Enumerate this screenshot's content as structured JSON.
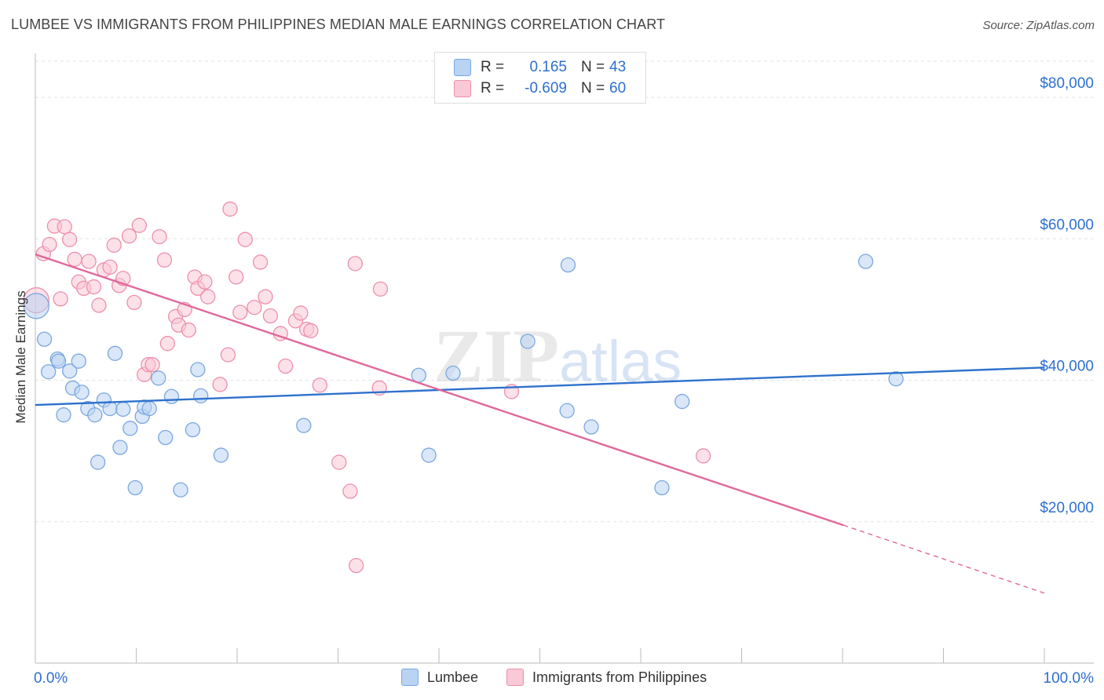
{
  "title": "LUMBEE VS IMMIGRANTS FROM PHILIPPINES MEDIAN MALE EARNINGS CORRELATION CHART",
  "source": "Source: ZipAtlas.com",
  "watermark": {
    "zip": "ZIP",
    "atlas": "atlas"
  },
  "legend": {
    "r_label": "R =",
    "n_label": "N =",
    "rows": [
      {
        "r": "0.165",
        "n": "43",
        "fill": "#b9d3f3",
        "stroke": "#7aa7e0"
      },
      {
        "r": "-0.609",
        "n": "60",
        "fill": "#f9c9d7",
        "stroke": "#ee8fab"
      }
    ]
  },
  "bottom_legend": [
    {
      "label": "Lumbee",
      "fill": "#b9d3f3",
      "stroke": "#7aa7e0"
    },
    {
      "label": "Immigrants from Philippines",
      "fill": "#f9c9d7",
      "stroke": "#ee8fab"
    }
  ],
  "colors": {
    "blue_line": "#2e72cc",
    "pink_line": "#e0689a",
    "tick_label": "#2e6fd0",
    "grid": "#e3e3e3"
  },
  "chart_data": {
    "type": "scatter",
    "ylabel": "Median Male Earnings",
    "xlim": [
      0,
      100
    ],
    "ylim": [
      0,
      86000
    ],
    "x_tick_labels": [
      "0.0%",
      "100.0%"
    ],
    "y_ticks": [
      {
        "value": 20000,
        "label": "$20,000"
      },
      {
        "value": 40000,
        "label": "$40,000"
      },
      {
        "value": 60000,
        "label": "$60,000"
      },
      {
        "value": 80000,
        "label": "$80,000"
      }
    ],
    "grid": true,
    "series": [
      {
        "name": "Lumbee",
        "color": "blue",
        "trend": {
          "x": [
            0,
            100
          ],
          "y": [
            36500,
            41800
          ]
        },
        "points": [
          [
            0.1,
            50500
          ],
          [
            0.9,
            45800
          ],
          [
            1.3,
            41200
          ],
          [
            2.2,
            43000
          ],
          [
            2.3,
            42700
          ],
          [
            2.8,
            35100
          ],
          [
            3.4,
            41300
          ],
          [
            3.7,
            38900
          ],
          [
            4.3,
            42700
          ],
          [
            4.6,
            38300
          ],
          [
            5.2,
            36000
          ],
          [
            5.9,
            35100
          ],
          [
            6.2,
            28400
          ],
          [
            6.8,
            37200
          ],
          [
            7.4,
            36000
          ],
          [
            7.9,
            43800
          ],
          [
            8.4,
            30500
          ],
          [
            8.7,
            35900
          ],
          [
            9.4,
            33200
          ],
          [
            9.9,
            24800
          ],
          [
            10.6,
            34900
          ],
          [
            10.8,
            36200
          ],
          [
            11.3,
            36000
          ],
          [
            12.2,
            40300
          ],
          [
            12.9,
            31900
          ],
          [
            13.5,
            37700
          ],
          [
            14.4,
            24500
          ],
          [
            15.6,
            33000
          ],
          [
            16.1,
            41500
          ],
          [
            16.4,
            37800
          ],
          [
            18.4,
            29400
          ],
          [
            26.6,
            33600
          ],
          [
            38.0,
            40700
          ],
          [
            39.0,
            29400
          ],
          [
            41.4,
            41000
          ],
          [
            48.8,
            45500
          ],
          [
            52.8,
            56300
          ],
          [
            52.7,
            35700
          ],
          [
            55.1,
            33400
          ],
          [
            62.1,
            24800
          ],
          [
            64.1,
            37000
          ],
          [
            82.3,
            56800
          ],
          [
            85.3,
            40200
          ]
        ]
      },
      {
        "name": "Immigrants from Philippines",
        "color": "pink",
        "trend": {
          "x": [
            0,
            80.1
          ],
          "y": [
            57800,
            19500
          ],
          "dashed_to": {
            "x": 100,
            "y": 9900
          }
        },
        "points": [
          [
            0.1,
            51300
          ],
          [
            0.8,
            57900
          ],
          [
            1.4,
            59200
          ],
          [
            1.9,
            61800
          ],
          [
            2.5,
            51500
          ],
          [
            2.9,
            61700
          ],
          [
            3.4,
            59900
          ],
          [
            3.9,
            57100
          ],
          [
            4.3,
            53900
          ],
          [
            4.8,
            53000
          ],
          [
            5.3,
            56800
          ],
          [
            5.8,
            53200
          ],
          [
            6.3,
            50600
          ],
          [
            6.8,
            55600
          ],
          [
            7.4,
            56000
          ],
          [
            7.8,
            59100
          ],
          [
            8.3,
            53400
          ],
          [
            8.7,
            54400
          ],
          [
            9.3,
            60400
          ],
          [
            9.8,
            51000
          ],
          [
            10.3,
            61900
          ],
          [
            10.8,
            40800
          ],
          [
            11.2,
            42200
          ],
          [
            11.6,
            42200
          ],
          [
            12.3,
            60300
          ],
          [
            12.8,
            57000
          ],
          [
            13.1,
            45200
          ],
          [
            13.9,
            49000
          ],
          [
            14.2,
            47800
          ],
          [
            14.8,
            50000
          ],
          [
            15.2,
            47100
          ],
          [
            15.8,
            54600
          ],
          [
            16.1,
            53000
          ],
          [
            16.8,
            53900
          ],
          [
            17.1,
            51800
          ],
          [
            18.3,
            39400
          ],
          [
            19.1,
            43600
          ],
          [
            19.3,
            64200
          ],
          [
            19.9,
            54600
          ],
          [
            20.3,
            49600
          ],
          [
            20.8,
            59900
          ],
          [
            21.7,
            50300
          ],
          [
            22.3,
            56700
          ],
          [
            22.8,
            51800
          ],
          [
            23.3,
            49100
          ],
          [
            24.3,
            46600
          ],
          [
            24.8,
            42000
          ],
          [
            25.8,
            48400
          ],
          [
            26.3,
            49500
          ],
          [
            26.9,
            47200
          ],
          [
            27.3,
            47000
          ],
          [
            28.2,
            39300
          ],
          [
            30.1,
            28400
          ],
          [
            31.2,
            24300
          ],
          [
            31.7,
            56500
          ],
          [
            31.8,
            13800
          ],
          [
            34.1,
            38900
          ],
          [
            34.2,
            52900
          ],
          [
            47.2,
            38400
          ],
          [
            66.2,
            29300
          ]
        ]
      }
    ]
  }
}
